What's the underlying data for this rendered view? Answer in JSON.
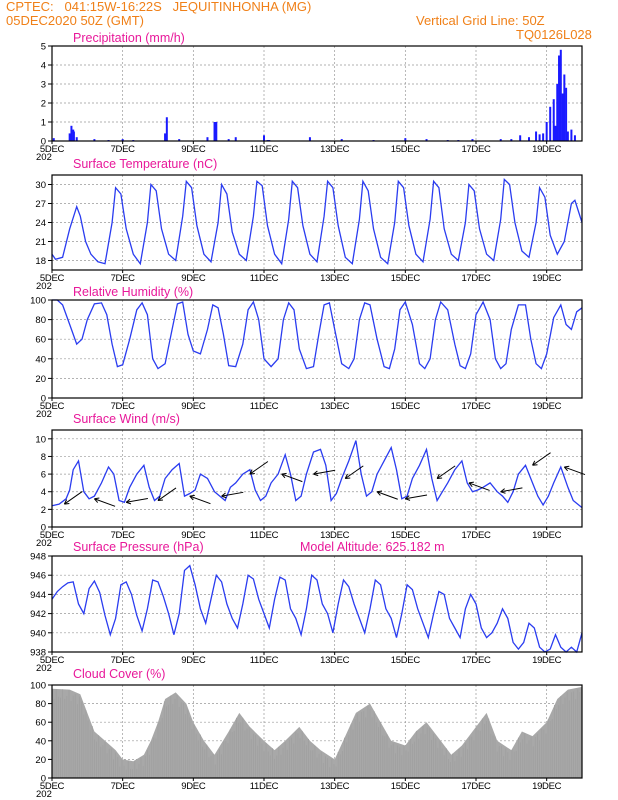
{
  "header": {
    "line1_left": "CPTEC:   041:15W-16:22S   JEQUITINHONHA (MG)",
    "line2_left": "05DEC2020 50Z (GMT)",
    "line2_right": "Vertical Grid Line: 50Z",
    "line3_right": "TQ0126L028"
  },
  "colors": {
    "series": "#2a3cf0",
    "title": "#e8189a",
    "header": "#f08018",
    "bar": "#1a1aff",
    "cloud": "#a8a8a8"
  },
  "x_labels": [
    "5DEC",
    "7DEC",
    "9DEC",
    "11DEC",
    "13DEC",
    "15DEC",
    "17DEC",
    "19DEC"
  ],
  "year_stub": "202",
  "chart_data": [
    {
      "type": "bar",
      "title": "Precipitation (mm/h)",
      "ylim": [
        0,
        5
      ],
      "yticks": [
        "0",
        "1",
        "2",
        "3",
        "4",
        "5"
      ],
      "x": [
        0.05,
        0.5,
        0.55,
        0.6,
        0.62,
        0.7,
        1.2,
        1.6,
        2.0,
        2.3,
        3.2,
        3.25,
        3.6,
        4.4,
        4.6,
        4.65,
        5.0,
        5.2,
        6.0,
        6.1,
        6.15,
        7.3,
        8.2,
        9.1,
        10.0,
        10.6,
        11.2,
        11.5,
        11.9,
        12.7,
        13.0,
        13.25,
        13.5,
        13.7,
        13.8,
        13.9,
        14.0,
        14.1,
        14.2,
        14.25,
        14.3,
        14.35,
        14.4,
        14.45,
        14.5,
        14.55,
        14.6,
        14.7,
        14.8
      ],
      "values": [
        0.15,
        0.4,
        0.8,
        0.6,
        0.5,
        0.2,
        0.1,
        0.05,
        0.1,
        0.05,
        0.4,
        1.25,
        0.1,
        0.2,
        1.0,
        1.0,
        0.1,
        0.2,
        0.3,
        0.05,
        0.05,
        0.2,
        0.1,
        0.05,
        0.15,
        0.1,
        0.05,
        0.05,
        0.1,
        0.1,
        0.1,
        0.3,
        0.2,
        0.5,
        0.35,
        0.4,
        1.0,
        1.8,
        2.2,
        0.8,
        3.0,
        4.5,
        4.8,
        2.5,
        3.5,
        2.8,
        0.5,
        0.6,
        0.3
      ],
      "xlim": [
        0,
        15
      ]
    },
    {
      "type": "line",
      "title": "Surface Temperature (nC)",
      "ylim": [
        16.5,
        31.5
      ],
      "yticks": [
        "18",
        "21",
        "24",
        "27",
        "30"
      ],
      "x": [
        0,
        0.1,
        0.3,
        0.5,
        0.7,
        0.8,
        0.95,
        1.1,
        1.3,
        1.5,
        1.7,
        1.8,
        1.95,
        2.1,
        2.3,
        2.5,
        2.7,
        2.8,
        2.95,
        3.1,
        3.3,
        3.5,
        3.7,
        3.8,
        3.95,
        4.1,
        4.3,
        4.5,
        4.7,
        4.8,
        4.95,
        5.1,
        5.3,
        5.5,
        5.7,
        5.8,
        5.95,
        6.1,
        6.3,
        6.5,
        6.7,
        6.8,
        6.95,
        7.1,
        7.3,
        7.5,
        7.7,
        7.8,
        7.95,
        8.1,
        8.3,
        8.5,
        8.7,
        8.8,
        8.95,
        9.1,
        9.3,
        9.5,
        9.7,
        9.8,
        9.95,
        10.1,
        10.3,
        10.5,
        10.7,
        10.8,
        10.95,
        11.1,
        11.3,
        11.5,
        11.7,
        11.8,
        11.95,
        12.1,
        12.3,
        12.5,
        12.7,
        12.8,
        12.95,
        13.1,
        13.3,
        13.5,
        13.7,
        13.8,
        13.95,
        14.1,
        14.3,
        14.5,
        14.7,
        14.8,
        15.0
      ],
      "values": [
        19,
        18.2,
        18.5,
        23,
        26.5,
        25,
        21,
        19,
        17.8,
        17.5,
        24,
        29.5,
        28.5,
        23,
        19,
        17.5,
        24,
        30,
        29,
        23,
        19,
        18,
        25,
        30.5,
        29.5,
        23.5,
        19,
        17.8,
        24,
        30,
        28.5,
        22.5,
        19,
        18,
        25,
        30.5,
        29.8,
        23.5,
        19,
        17.5,
        24.5,
        30.5,
        29.5,
        23.5,
        19,
        17.8,
        25,
        30.5,
        29.5,
        23.5,
        18.5,
        17.5,
        24.5,
        30.5,
        29,
        23,
        18.5,
        17.5,
        24,
        30.5,
        29.5,
        23.5,
        19,
        17.8,
        24.5,
        30.5,
        29.5,
        23,
        19,
        18,
        24,
        30,
        29,
        23,
        19,
        18,
        24.5,
        30.8,
        30,
        24,
        19.5,
        18.5,
        24,
        29.5,
        28,
        22,
        19,
        21,
        27,
        27.5,
        24
      ]
    },
    {
      "type": "line",
      "title": "Relative Humidity (%)",
      "ylim": [
        0,
        100
      ],
      "yticks": [
        "0",
        "20",
        "40",
        "60",
        "80",
        "100"
      ],
      "x": [
        0,
        0.15,
        0.3,
        0.5,
        0.7,
        0.85,
        1.0,
        1.2,
        1.4,
        1.55,
        1.7,
        1.85,
        2.0,
        2.2,
        2.4,
        2.55,
        2.7,
        2.85,
        3.0,
        3.2,
        3.4,
        3.55,
        3.7,
        3.85,
        4.0,
        4.2,
        4.4,
        4.55,
        4.7,
        4.85,
        5.0,
        5.2,
        5.4,
        5.55,
        5.7,
        5.85,
        6.0,
        6.2,
        6.4,
        6.55,
        6.7,
        6.85,
        7.0,
        7.2,
        7.4,
        7.55,
        7.7,
        7.85,
        8.0,
        8.2,
        8.4,
        8.55,
        8.7,
        8.85,
        9.0,
        9.2,
        9.4,
        9.55,
        9.7,
        9.85,
        10.0,
        10.2,
        10.4,
        10.55,
        10.7,
        10.85,
        11.0,
        11.2,
        11.4,
        11.55,
        11.7,
        11.85,
        12.0,
        12.2,
        12.4,
        12.55,
        12.7,
        12.85,
        13.0,
        13.2,
        13.4,
        13.55,
        13.7,
        13.85,
        14.0,
        14.2,
        14.4,
        14.55,
        14.7,
        14.85,
        15.0
      ],
      "values": [
        100,
        100,
        95,
        75,
        55,
        60,
        80,
        96,
        97,
        85,
        55,
        32,
        34,
        60,
        90,
        97,
        85,
        40,
        30,
        35,
        70,
        96,
        98,
        65,
        48,
        45,
        70,
        95,
        92,
        65,
        33,
        32,
        55,
        90,
        98,
        80,
        40,
        32,
        40,
        80,
        97,
        90,
        50,
        30,
        32,
        65,
        95,
        97,
        70,
        35,
        30,
        40,
        80,
        97,
        95,
        60,
        32,
        30,
        50,
        90,
        98,
        75,
        35,
        30,
        40,
        80,
        98,
        90,
        55,
        33,
        30,
        45,
        85,
        98,
        80,
        40,
        30,
        35,
        70,
        95,
        95,
        60,
        35,
        30,
        45,
        82,
        95,
        75,
        70,
        88,
        92
      ]
    },
    {
      "type": "line",
      "title": "Surface Wind (m/s)",
      "ylim": [
        0,
        11
      ],
      "yticks": [
        "0",
        "2",
        "4",
        "6",
        "8",
        "10"
      ],
      "x": [
        0,
        0.2,
        0.4,
        0.5,
        0.6,
        0.75,
        0.9,
        1.05,
        1.2,
        1.4,
        1.6,
        1.75,
        1.9,
        2.05,
        2.2,
        2.4,
        2.6,
        2.75,
        2.9,
        3.05,
        3.2,
        3.4,
        3.6,
        3.75,
        3.9,
        4.05,
        4.2,
        4.4,
        4.6,
        4.75,
        4.9,
        5.05,
        5.2,
        5.4,
        5.6,
        5.75,
        5.9,
        6.05,
        6.2,
        6.4,
        6.6,
        6.75,
        6.9,
        7.05,
        7.2,
        7.4,
        7.6,
        7.75,
        7.9,
        8.05,
        8.2,
        8.4,
        8.6,
        8.75,
        8.9,
        9.05,
        9.2,
        9.4,
        9.6,
        9.75,
        9.9,
        10.05,
        10.2,
        10.4,
        10.6,
        10.75,
        10.9,
        11.05,
        11.2,
        11.4,
        11.6,
        11.75,
        11.9,
        12.05,
        12.2,
        12.4,
        12.6,
        12.75,
        12.9,
        13.05,
        13.2,
        13.4,
        13.6,
        13.75,
        13.9,
        14.05,
        14.2,
        14.4,
        14.6,
        14.75,
        15.0
      ],
      "values": [
        2.4,
        2.6,
        3.2,
        4.2,
        6.5,
        7.5,
        4.0,
        3.2,
        3.5,
        5.0,
        6.8,
        6.0,
        3.0,
        2.8,
        4.5,
        6.0,
        7.0,
        4.5,
        3.0,
        3.5,
        5.5,
        6.5,
        7.2,
        3.5,
        3.8,
        4.2,
        6.0,
        5.5,
        4.0,
        3.5,
        3.0,
        4.5,
        5.0,
        6.0,
        6.5,
        4.2,
        3.0,
        3.5,
        5.0,
        6.0,
        8.2,
        6.0,
        3.0,
        3.5,
        6.0,
        8.5,
        8.8,
        7.0,
        3.0,
        3.8,
        5.5,
        7.5,
        9.8,
        6.0,
        3.5,
        4.0,
        6.0,
        7.5,
        9.0,
        6.5,
        3.2,
        3.5,
        5.5,
        7.0,
        8.8,
        5.5,
        3.0,
        4.0,
        5.0,
        6.5,
        7.5,
        5.0,
        4.0,
        4.2,
        4.5,
        5.0,
        4.0,
        3.5,
        2.8,
        4.0,
        6.0,
        7.0,
        5.0,
        3.5,
        2.5,
        3.5,
        5.0,
        6.8,
        4.5,
        3.0,
        2.2
      ]
    },
    {
      "type": "line",
      "title": "Surface Pressure (hPa)",
      "subtitle": "Model Altitude: 625.182 m",
      "ylim": [
        938,
        948
      ],
      "yticks": [
        "938",
        "940",
        "942",
        "944",
        "946",
        "948"
      ],
      "x": [
        0,
        0.15,
        0.3,
        0.45,
        0.6,
        0.75,
        0.9,
        1.05,
        1.2,
        1.35,
        1.5,
        1.65,
        1.8,
        1.95,
        2.1,
        2.25,
        2.4,
        2.55,
        2.7,
        2.85,
        3.0,
        3.15,
        3.3,
        3.45,
        3.6,
        3.75,
        3.9,
        4.05,
        4.2,
        4.35,
        4.5,
        4.65,
        4.8,
        4.95,
        5.1,
        5.25,
        5.4,
        5.55,
        5.7,
        5.85,
        6.0,
        6.15,
        6.3,
        6.45,
        6.6,
        6.75,
        6.9,
        7.05,
        7.2,
        7.35,
        7.5,
        7.65,
        7.8,
        7.95,
        8.1,
        8.25,
        8.4,
        8.55,
        8.7,
        8.85,
        9.0,
        9.15,
        9.3,
        9.45,
        9.6,
        9.75,
        9.9,
        10.05,
        10.2,
        10.35,
        10.5,
        10.65,
        10.8,
        10.95,
        11.1,
        11.25,
        11.4,
        11.55,
        11.7,
        11.85,
        12.0,
        12.15,
        12.3,
        12.45,
        12.6,
        12.75,
        12.9,
        13.05,
        13.2,
        13.35,
        13.5,
        13.65,
        13.8,
        13.95,
        14.1,
        14.25,
        14.4,
        14.55,
        14.7,
        14.85,
        15.0
      ],
      "values": [
        943.5,
        944.3,
        944.8,
        945.2,
        945.3,
        943.0,
        942.0,
        944.6,
        945.4,
        944.2,
        941.8,
        939.8,
        941.5,
        945.0,
        945.3,
        944.0,
        941.8,
        940.2,
        942.5,
        945.5,
        945.3,
        943.8,
        942.0,
        939.8,
        942.0,
        946.5,
        947.0,
        945.0,
        942.5,
        941.0,
        943.5,
        946.0,
        945.3,
        943.0,
        941.5,
        940.5,
        943.0,
        946.0,
        945.6,
        943.5,
        942.0,
        940.5,
        943.5,
        945.8,
        945.5,
        942.5,
        941.5,
        939.8,
        942.5,
        946.0,
        945.5,
        943.0,
        942.0,
        940.0,
        943.0,
        945.5,
        944.8,
        943.0,
        941.5,
        940.0,
        942.5,
        945.5,
        945.0,
        942.5,
        941.5,
        939.5,
        942.0,
        945.0,
        944.5,
        942.5,
        941.0,
        939.5,
        942.0,
        944.3,
        944.0,
        941.5,
        940.5,
        939.5,
        942.5,
        944.0,
        943.0,
        940.5,
        939.5,
        940.0,
        941.0,
        942.5,
        941.5,
        939.0,
        938.3,
        939.0,
        941.0,
        940.5,
        938.5,
        938.0,
        938.3,
        939.8,
        938.5,
        938.0,
        938.5,
        938.0,
        940.0
      ]
    },
    {
      "type": "area",
      "title": "Cloud Cover (%)",
      "ylim": [
        0,
        100
      ],
      "yticks": [
        "0",
        "20",
        "40",
        "60",
        "80",
        "100"
      ],
      "x": [
        0,
        0.5,
        0.8,
        1.0,
        1.2,
        1.5,
        1.8,
        2.0,
        2.3,
        2.6,
        2.8,
        3.0,
        3.2,
        3.5,
        3.8,
        4.0,
        4.3,
        4.6,
        5.0,
        5.3,
        5.6,
        6.0,
        6.3,
        6.6,
        7.0,
        7.3,
        7.6,
        8.0,
        8.3,
        8.6,
        9.0,
        9.3,
        9.6,
        10.0,
        10.3,
        10.6,
        11.0,
        11.3,
        11.6,
        12.0,
        12.3,
        12.6,
        13.0,
        13.3,
        13.6,
        14.0,
        14.3,
        14.6,
        15.0
      ],
      "values": [
        96,
        95,
        90,
        70,
        50,
        40,
        30,
        20,
        18,
        25,
        40,
        60,
        85,
        92,
        80,
        60,
        40,
        25,
        50,
        70,
        55,
        40,
        30,
        40,
        55,
        40,
        30,
        20,
        45,
        70,
        80,
        60,
        40,
        35,
        50,
        60,
        40,
        25,
        35,
        55,
        70,
        40,
        30,
        50,
        45,
        60,
        85,
        95,
        98
      ]
    }
  ],
  "wind_arrows": "direction vectors along wind trace (decorative representation of wind direction)"
}
